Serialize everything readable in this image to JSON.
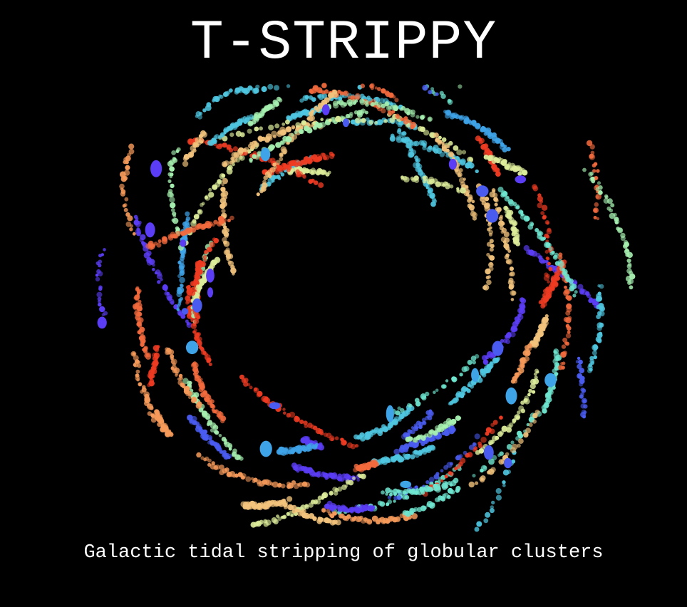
{
  "title": "T-STRIPPY",
  "subtitle": "Galactic tidal stripping of globular clusters",
  "colors": {
    "background": "#000000",
    "text": "#ffffff",
    "palette": [
      "#5b3df5",
      "#4a5cf0",
      "#3fa3e8",
      "#4fc6e0",
      "#6fe6d0",
      "#a6f0b0",
      "#dcec9a",
      "#f2c37c",
      "#f59a5a",
      "#f26a3d",
      "#ee3b22"
    ]
  }
}
